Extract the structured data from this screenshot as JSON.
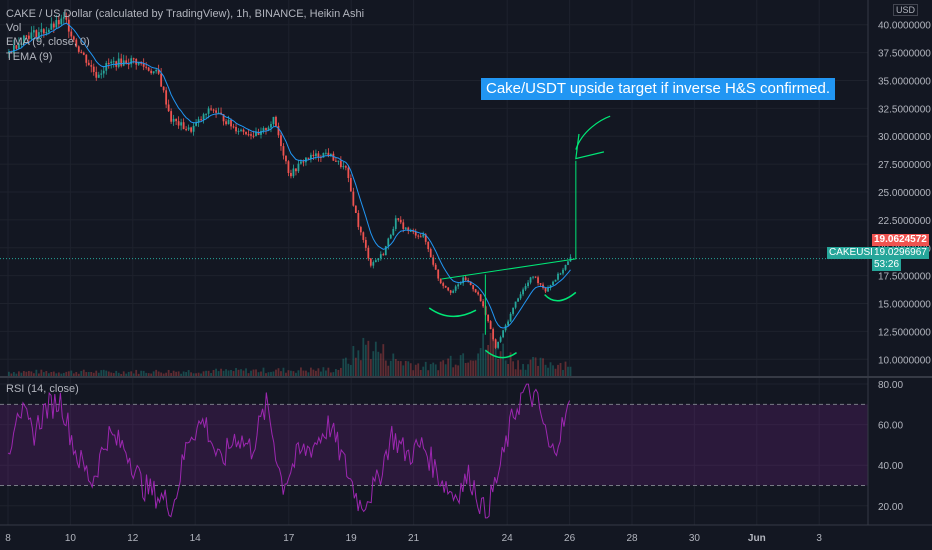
{
  "header": {
    "title": "CAKE / US Dollar (calculated by TradingView), 1h, BINANCE, Heikin Ashi",
    "indicators": [
      "Vol",
      "EMA (9, close, 0)",
      "TEMA (9)"
    ],
    "currency": "USD"
  },
  "annotation": "Cake/USDT upside target if inverse H&S confirmed.",
  "price_tags": {
    "high": "19.0624572",
    "symbol": "CAKEUSD",
    "last": "19.0296967",
    "countdown": "53:26"
  },
  "rsi_label": "RSI (14, close)",
  "colors": {
    "background": "#131722",
    "up": "#26a69a",
    "down": "#ef5350",
    "ema": "#2196f3",
    "rsi": "#9c27b0",
    "annotation": "#2196f3",
    "drawing": "#00e676"
  },
  "chart_data": [
    {
      "type": "candlestick",
      "price_axis": {
        "ticks": [
          "40.0000000",
          "37.5000000",
          "35.0000000",
          "32.5000000",
          "30.0000000",
          "27.5000000",
          "25.0000000",
          "22.5000000",
          "20.0000000",
          "17.5000000",
          "15.0000000",
          "12.5000000",
          "10.0000000"
        ],
        "ylim": [
          8.5,
          41.5
        ]
      },
      "x_axis": {
        "ticks": [
          "8",
          "10",
          "12",
          "14",
          "17",
          "19",
          "21",
          "24",
          "26",
          "28",
          "30",
          "Jun",
          "3"
        ]
      },
      "price_path": [
        {
          "day": 8.0,
          "price": 37.5
        },
        {
          "day": 8.5,
          "price": 39.0
        },
        {
          "day": 9.2,
          "price": 39.5
        },
        {
          "day": 9.8,
          "price": 40.5
        },
        {
          "day": 10.2,
          "price": 38.0
        },
        {
          "day": 10.8,
          "price": 35.5
        },
        {
          "day": 11.2,
          "price": 36.5
        },
        {
          "day": 12.0,
          "price": 36.8
        },
        {
          "day": 12.8,
          "price": 35.5
        },
        {
          "day": 13.2,
          "price": 31.5
        },
        {
          "day": 13.8,
          "price": 30.5
        },
        {
          "day": 14.5,
          "price": 32.5
        },
        {
          "day": 15.2,
          "price": 30.8
        },
        {
          "day": 16.0,
          "price": 30.0
        },
        {
          "day": 16.5,
          "price": 31.5
        },
        {
          "day": 17.0,
          "price": 26.5
        },
        {
          "day": 17.5,
          "price": 28.0
        },
        {
          "day": 18.2,
          "price": 28.5
        },
        {
          "day": 18.8,
          "price": 27.0
        },
        {
          "day": 19.2,
          "price": 22.0
        },
        {
          "day": 19.6,
          "price": 18.5
        },
        {
          "day": 20.0,
          "price": 19.5
        },
        {
          "day": 20.4,
          "price": 22.5
        },
        {
          "day": 20.8,
          "price": 21.5
        },
        {
          "day": 21.3,
          "price": 21.0
        },
        {
          "day": 21.8,
          "price": 17.0
        },
        {
          "day": 22.2,
          "price": 16.0
        },
        {
          "day": 22.6,
          "price": 17.3
        },
        {
          "day": 23.0,
          "price": 16.0
        },
        {
          "day": 23.3,
          "price": 14.0
        },
        {
          "day": 23.6,
          "price": 11.0
        },
        {
          "day": 24.0,
          "price": 13.5
        },
        {
          "day": 24.3,
          "price": 15.5
        },
        {
          "day": 24.8,
          "price": 17.5
        },
        {
          "day": 25.2,
          "price": 16.2
        },
        {
          "day": 25.6,
          "price": 17.5
        },
        {
          "day": 26.0,
          "price": 19.0
        }
      ],
      "volume_path": [
        {
          "day": 8.0,
          "value": 0.1
        },
        {
          "day": 12.0,
          "value": 0.1
        },
        {
          "day": 18.5,
          "value": 0.15
        },
        {
          "day": 19.5,
          "value": 0.75
        },
        {
          "day": 20.3,
          "value": 0.4
        },
        {
          "day": 21.5,
          "value": 0.2
        },
        {
          "day": 23.5,
          "value": 0.8
        },
        {
          "day": 24.3,
          "value": 0.3
        },
        {
          "day": 26.0,
          "value": 0.3
        }
      ]
    },
    {
      "type": "line",
      "title": "RSI (14, close)",
      "y_axis": {
        "ticks": [
          "80.00",
          "60.00",
          "40.00",
          "20.00"
        ],
        "ylim": [
          12,
          82
        ]
      },
      "bands": [
        30,
        70
      ],
      "rsi_path": [
        {
          "day": 8.0,
          "value": 45
        },
        {
          "day": 8.3,
          "value": 70
        },
        {
          "day": 8.8,
          "value": 55
        },
        {
          "day": 9.2,
          "value": 68
        },
        {
          "day": 9.7,
          "value": 72
        },
        {
          "day": 10.2,
          "value": 45
        },
        {
          "day": 10.7,
          "value": 32
        },
        {
          "day": 11.2,
          "value": 55
        },
        {
          "day": 11.8,
          "value": 48
        },
        {
          "day": 12.3,
          "value": 30
        },
        {
          "day": 12.8,
          "value": 25
        },
        {
          "day": 13.3,
          "value": 20
        },
        {
          "day": 13.8,
          "value": 55
        },
        {
          "day": 14.3,
          "value": 62
        },
        {
          "day": 14.8,
          "value": 40
        },
        {
          "day": 15.3,
          "value": 55
        },
        {
          "day": 15.8,
          "value": 48
        },
        {
          "day": 16.3,
          "value": 70
        },
        {
          "day": 16.8,
          "value": 30
        },
        {
          "day": 17.3,
          "value": 45
        },
        {
          "day": 17.8,
          "value": 50
        },
        {
          "day": 18.3,
          "value": 60
        },
        {
          "day": 18.8,
          "value": 40
        },
        {
          "day": 19.3,
          "value": 20
        },
        {
          "day": 19.8,
          "value": 30
        },
        {
          "day": 20.3,
          "value": 55
        },
        {
          "day": 20.8,
          "value": 45
        },
        {
          "day": 21.3,
          "value": 50
        },
        {
          "day": 21.8,
          "value": 35
        },
        {
          "day": 22.3,
          "value": 25
        },
        {
          "day": 22.8,
          "value": 35
        },
        {
          "day": 23.3,
          "value": 15
        },
        {
          "day": 23.8,
          "value": 40
        },
        {
          "day": 24.2,
          "value": 65
        },
        {
          "day": 24.6,
          "value": 78
        },
        {
          "day": 25.0,
          "value": 70
        },
        {
          "day": 25.4,
          "value": 45
        },
        {
          "day": 25.8,
          "value": 60
        },
        {
          "day": 26.0,
          "value": 68
        }
      ]
    }
  ]
}
